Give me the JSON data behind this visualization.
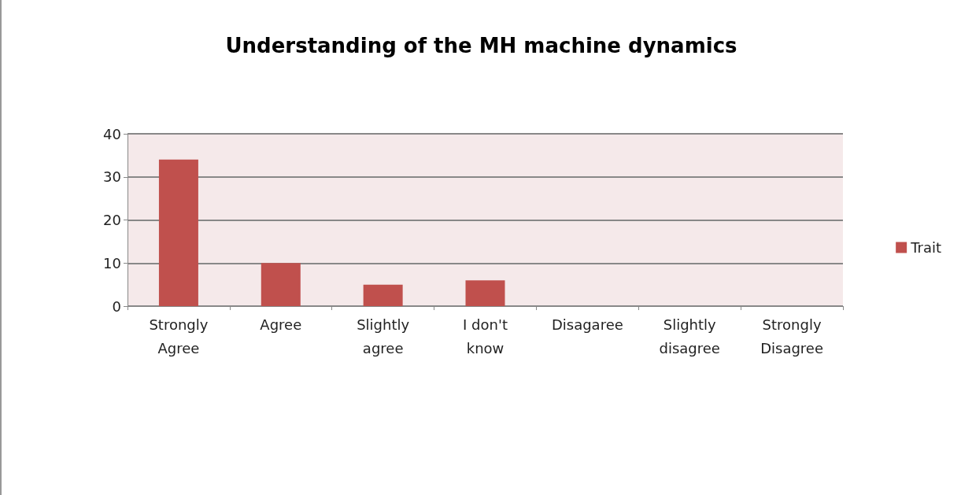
{
  "chart_data": {
    "type": "bar",
    "title": "Understanding of the MH machine dynamics",
    "categories": [
      "Strongly Agree",
      "Agree",
      "Slightly agree",
      "I don't know",
      "Disagaree",
      "Slightly disagree",
      "Strongly Disagree"
    ],
    "series": [
      {
        "name": "Trait",
        "color": "#c0504d",
        "values": [
          34,
          10,
          5,
          6,
          0,
          0,
          0
        ]
      }
    ],
    "ylim": [
      0,
      40
    ],
    "yticks": [
      0,
      10,
      20,
      30,
      40
    ],
    "grid": "y",
    "legend": "right"
  }
}
